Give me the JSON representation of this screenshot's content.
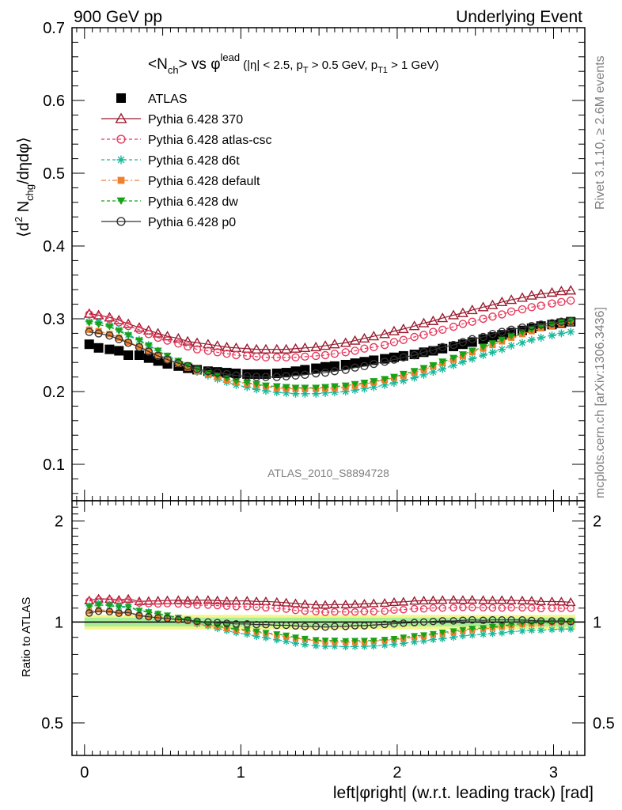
{
  "header": {
    "left": "900 GeV pp",
    "right": "Underlying Event"
  },
  "title": {
    "prefix_open": "<N",
    "prefix_sub": "ch",
    "prefix_close": "> vs φ",
    "lead_sup": "lead",
    "cut_eta": "(|η| < 2.5, p",
    "cut_t_sub": "T",
    "cut_mid": " > 0.5 GeV, p",
    "cut_t1_sub": "T1",
    "cut_end": " > 1 GeV)"
  },
  "side_labels": {
    "rivet": "Rivet 3.1.10, ≥ 2.6M events",
    "mcplots": "mcplots.cern.ch [arXiv:1306.3436]"
  },
  "analysis_label": "ATLAS_2010_S8894728",
  "axes": {
    "ylabel_main": "⟨d² N_chg/dηdφ⟩",
    "ylabel_ratio": "Ratio to ATLAS",
    "xlabel": "left|φright| (w.r.t. leading track) [rad]",
    "x_ticks": [
      "0",
      "1",
      "2",
      "3"
    ],
    "y_ticks_main": [
      "0.1",
      "0.2",
      "0.3",
      "0.4",
      "0.5",
      "0.6",
      "0.7"
    ],
    "y_ticks_ratio": [
      "0.5",
      "1",
      "2"
    ]
  },
  "legend": [
    {
      "label": "ATLAS",
      "color": "#000000",
      "marker": "filled-square",
      "line": "none"
    },
    {
      "label": "Pythia 6.428 370",
      "color": "#9a1b2f",
      "marker": "open-triangle",
      "line": "solid"
    },
    {
      "label": "Pythia 6.428 atlas-csc",
      "color": "#e8385c",
      "marker": "open-circle",
      "line": "dashed"
    },
    {
      "label": "Pythia 6.428 d6t",
      "color": "#1ab89a",
      "marker": "asterisk",
      "line": "dashed"
    },
    {
      "label": "Pythia 6.428 default",
      "color": "#f07f2e",
      "marker": "filled-square-small",
      "line": "dashdot"
    },
    {
      "label": "Pythia 6.428 dw",
      "color": "#17a317",
      "marker": "filled-triangle-down",
      "line": "dashed"
    },
    {
      "label": "Pythia 6.428 p0",
      "color": "#333333",
      "marker": "open-circle",
      "line": "solid"
    }
  ],
  "chart_data": {
    "type": "scatter",
    "xlim": [
      -0.08,
      3.2
    ],
    "ylim_main": [
      0.05,
      0.7
    ],
    "ylim_ratio": [
      0.4,
      2.3
    ],
    "ratio_log_scale": true,
    "x": [
      0.03,
      0.09,
      0.16,
      0.22,
      0.28,
      0.35,
      0.41,
      0.47,
      0.53,
      0.6,
      0.66,
      0.72,
      0.79,
      0.85,
      0.91,
      0.97,
      1.04,
      1.1,
      1.16,
      1.23,
      1.29,
      1.35,
      1.41,
      1.48,
      1.54,
      1.6,
      1.67,
      1.73,
      1.79,
      1.85,
      1.92,
      1.98,
      2.04,
      2.11,
      2.17,
      2.23,
      2.29,
      2.36,
      2.42,
      2.48,
      2.55,
      2.61,
      2.67,
      2.73,
      2.8,
      2.86,
      2.92,
      2.99,
      3.05,
      3.11
    ],
    "series": [
      {
        "name": "ATLAS",
        "values": [
          0.265,
          0.26,
          0.258,
          0.256,
          0.25,
          0.25,
          0.246,
          0.242,
          0.238,
          0.235,
          0.232,
          0.23,
          0.228,
          0.227,
          0.226,
          0.225,
          0.224,
          0.224,
          0.224,
          0.225,
          0.226,
          0.228,
          0.23,
          0.232,
          0.234,
          0.235,
          0.237,
          0.239,
          0.241,
          0.243,
          0.245,
          0.247,
          0.249,
          0.251,
          0.254,
          0.256,
          0.259,
          0.262,
          0.265,
          0.268,
          0.272,
          0.275,
          0.278,
          0.281,
          0.284,
          0.287,
          0.29,
          0.292,
          0.294,
          0.296
        ]
      },
      {
        "name": "Pythia 6.428 370",
        "values": [
          0.307,
          0.305,
          0.302,
          0.298,
          0.293,
          0.288,
          0.284,
          0.28,
          0.276,
          0.273,
          0.269,
          0.267,
          0.265,
          0.263,
          0.261,
          0.26,
          0.259,
          0.258,
          0.258,
          0.258,
          0.258,
          0.259,
          0.26,
          0.261,
          0.263,
          0.265,
          0.267,
          0.27,
          0.273,
          0.276,
          0.279,
          0.283,
          0.286,
          0.29,
          0.294,
          0.297,
          0.301,
          0.305,
          0.308,
          0.312,
          0.316,
          0.319,
          0.323,
          0.326,
          0.329,
          0.332,
          0.334,
          0.336,
          0.338,
          0.339
        ]
      },
      {
        "name": "Pythia 6.428 atlas-csc",
        "values": [
          0.306,
          0.303,
          0.3,
          0.295,
          0.29,
          0.285,
          0.279,
          0.274,
          0.27,
          0.266,
          0.262,
          0.258,
          0.256,
          0.254,
          0.252,
          0.25,
          0.249,
          0.248,
          0.247,
          0.247,
          0.247,
          0.247,
          0.248,
          0.249,
          0.25,
          0.252,
          0.254,
          0.256,
          0.259,
          0.261,
          0.264,
          0.268,
          0.271,
          0.275,
          0.278,
          0.282,
          0.285,
          0.289,
          0.293,
          0.296,
          0.3,
          0.303,
          0.306,
          0.31,
          0.313,
          0.316,
          0.318,
          0.321,
          0.323,
          0.325
        ]
      },
      {
        "name": "Pythia 6.428 d6t",
        "values": [
          0.296,
          0.295,
          0.291,
          0.285,
          0.278,
          0.271,
          0.264,
          0.256,
          0.248,
          0.241,
          0.234,
          0.227,
          0.222,
          0.217,
          0.213,
          0.209,
          0.206,
          0.203,
          0.201,
          0.199,
          0.198,
          0.197,
          0.197,
          0.197,
          0.198,
          0.199,
          0.2,
          0.202,
          0.204,
          0.206,
          0.209,
          0.212,
          0.215,
          0.219,
          0.223,
          0.227,
          0.231,
          0.236,
          0.241,
          0.245,
          0.25,
          0.254,
          0.258,
          0.263,
          0.267,
          0.271,
          0.274,
          0.277,
          0.28,
          0.282
        ]
      },
      {
        "name": "Pythia 6.428 default",
        "values": [
          0.285,
          0.283,
          0.279,
          0.274,
          0.268,
          0.262,
          0.256,
          0.25,
          0.244,
          0.238,
          0.233,
          0.228,
          0.223,
          0.22,
          0.216,
          0.213,
          0.211,
          0.209,
          0.207,
          0.205,
          0.204,
          0.204,
          0.204,
          0.204,
          0.204,
          0.205,
          0.206,
          0.208,
          0.21,
          0.213,
          0.216,
          0.219,
          0.222,
          0.226,
          0.23,
          0.235,
          0.239,
          0.244,
          0.249,
          0.254,
          0.259,
          0.264,
          0.269,
          0.274,
          0.279,
          0.283,
          0.287,
          0.29,
          0.293,
          0.295
        ]
      },
      {
        "name": "Pythia 6.428 dw",
        "values": [
          0.294,
          0.292,
          0.289,
          0.283,
          0.277,
          0.27,
          0.263,
          0.256,
          0.249,
          0.242,
          0.236,
          0.23,
          0.225,
          0.221,
          0.218,
          0.214,
          0.212,
          0.21,
          0.208,
          0.207,
          0.206,
          0.205,
          0.205,
          0.205,
          0.206,
          0.207,
          0.208,
          0.21,
          0.212,
          0.214,
          0.217,
          0.22,
          0.224,
          0.228,
          0.232,
          0.236,
          0.241,
          0.246,
          0.251,
          0.256,
          0.261,
          0.266,
          0.271,
          0.276,
          0.281,
          0.285,
          0.289,
          0.292,
          0.295,
          0.297
        ]
      },
      {
        "name": "Pythia 6.428 p0",
        "values": [
          0.282,
          0.28,
          0.277,
          0.272,
          0.267,
          0.261,
          0.255,
          0.249,
          0.244,
          0.239,
          0.235,
          0.231,
          0.228,
          0.226,
          0.224,
          0.222,
          0.221,
          0.22,
          0.22,
          0.22,
          0.221,
          0.222,
          0.223,
          0.225,
          0.226,
          0.228,
          0.23,
          0.233,
          0.235,
          0.238,
          0.241,
          0.244,
          0.247,
          0.25,
          0.254,
          0.257,
          0.261,
          0.264,
          0.268,
          0.272,
          0.275,
          0.279,
          0.282,
          0.285,
          0.288,
          0.29,
          0.292,
          0.294,
          0.296,
          0.297
        ]
      }
    ],
    "ratio_band": {
      "inner": 0.03,
      "outer": 0.05
    },
    "grid": false,
    "legend_position": "top-left"
  }
}
